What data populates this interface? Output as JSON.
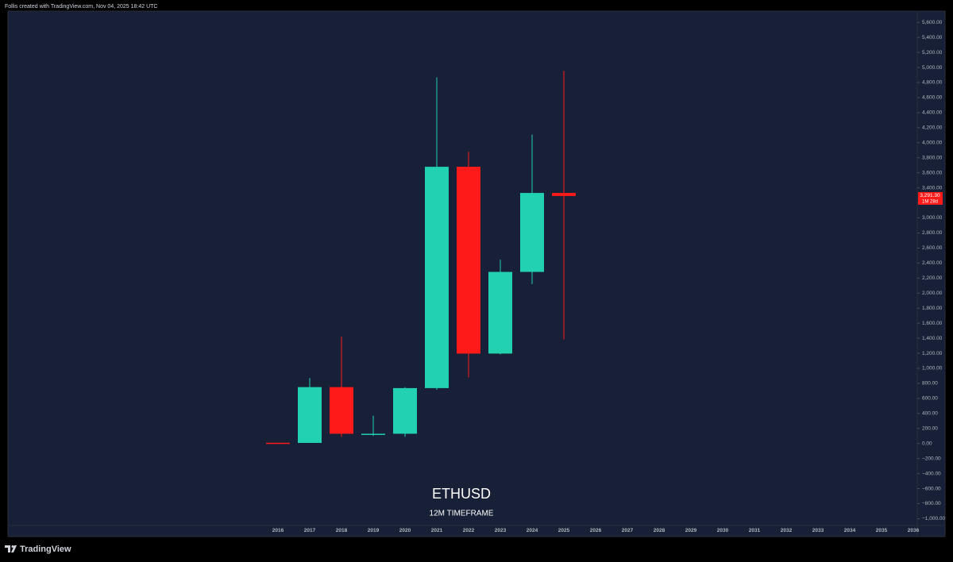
{
  "header": {
    "text": "Follis created with TradingView.com, Nov 04, 2025 18:42 UTC"
  },
  "footer": {
    "brand": "TradingView"
  },
  "chart_data": {
    "type": "candlestick",
    "title": "ETHUSD",
    "subtitle": "12M TIMEFRAME",
    "categories": [
      "2016",
      "2017",
      "2018",
      "2019",
      "2020",
      "2021",
      "2022",
      "2023",
      "2024",
      "2025",
      "2026",
      "2027",
      "2028",
      "2029",
      "2030",
      "2031",
      "2032",
      "2033",
      "2034",
      "2035",
      "2036"
    ],
    "open": [
      10,
      8,
      750,
      130,
      130,
      737,
      3680,
      1196,
      2282,
      3332,
      null,
      null,
      null,
      null,
      null,
      null,
      null,
      null,
      null,
      null,
      null
    ],
    "high": [
      10,
      870,
      1420,
      370,
      750,
      4868,
      3880,
      2445,
      4107,
      4956,
      null,
      null,
      null,
      null,
      null,
      null,
      null,
      null,
      null,
      null,
      null
    ],
    "low": [
      8,
      8,
      85,
      102,
      90,
      715,
      880,
      1185,
      2120,
      1385,
      null,
      null,
      null,
      null,
      null,
      null,
      null,
      null,
      null,
      null,
      null
    ],
    "close": [
      8,
      750,
      130,
      130,
      737,
      3680,
      1196,
      2282,
      3332,
      3291.3,
      null,
      null,
      null,
      null,
      null,
      null,
      null,
      null,
      null,
      null,
      null
    ],
    "up_color": "#22d1b0",
    "down_color": "#ff1a1a",
    "ylim": [
      -1090,
      5750
    ],
    "yticks": [
      {
        "value": -1000,
        "label": "−1,000.00"
      },
      {
        "value": -800,
        "label": "−800.00"
      },
      {
        "value": -600,
        "label": "−600.00"
      },
      {
        "value": -400,
        "label": "−400.00"
      },
      {
        "value": -200,
        "label": "−200.00"
      },
      {
        "value": 0,
        "label": "0.00"
      },
      {
        "value": 200,
        "label": "200.00"
      },
      {
        "value": 400,
        "label": "400.00"
      },
      {
        "value": 600,
        "label": "600.00"
      },
      {
        "value": 800,
        "label": "800.00"
      },
      {
        "value": 1000,
        "label": "1,000.00"
      },
      {
        "value": 1200,
        "label": "1,200.00"
      },
      {
        "value": 1400,
        "label": "1,400.00"
      },
      {
        "value": 1600,
        "label": "1,600.00"
      },
      {
        "value": 1800,
        "label": "1,800.00"
      },
      {
        "value": 2000,
        "label": "2,000.00"
      },
      {
        "value": 2200,
        "label": "2,200.00"
      },
      {
        "value": 2400,
        "label": "2,400.00"
      },
      {
        "value": 2600,
        "label": "2,600.00"
      },
      {
        "value": 2800,
        "label": "2,800.00"
      },
      {
        "value": 3000,
        "label": "3,000.00"
      },
      {
        "value": 3200,
        "label": "3,200.00"
      },
      {
        "value": 3400,
        "label": "3,400.00"
      },
      {
        "value": 3600,
        "label": "3,600.00"
      },
      {
        "value": 3800,
        "label": "3,800.00"
      },
      {
        "value": 4000,
        "label": "4,000.00"
      },
      {
        "value": 4200,
        "label": "4,200.00"
      },
      {
        "value": 4400,
        "label": "4,400.00"
      },
      {
        "value": 4600,
        "label": "4,600.00"
      },
      {
        "value": 4800,
        "label": "4,800.00"
      },
      {
        "value": 5000,
        "label": "5,000.00"
      },
      {
        "value": 5200,
        "label": "5,200.00"
      },
      {
        "value": 5400,
        "label": "5,400.00"
      },
      {
        "value": 5600,
        "label": "5,600.00"
      }
    ],
    "last_price": {
      "value": 3291.3,
      "label": "3,291.30"
    },
    "countdown": "1M 28d"
  }
}
